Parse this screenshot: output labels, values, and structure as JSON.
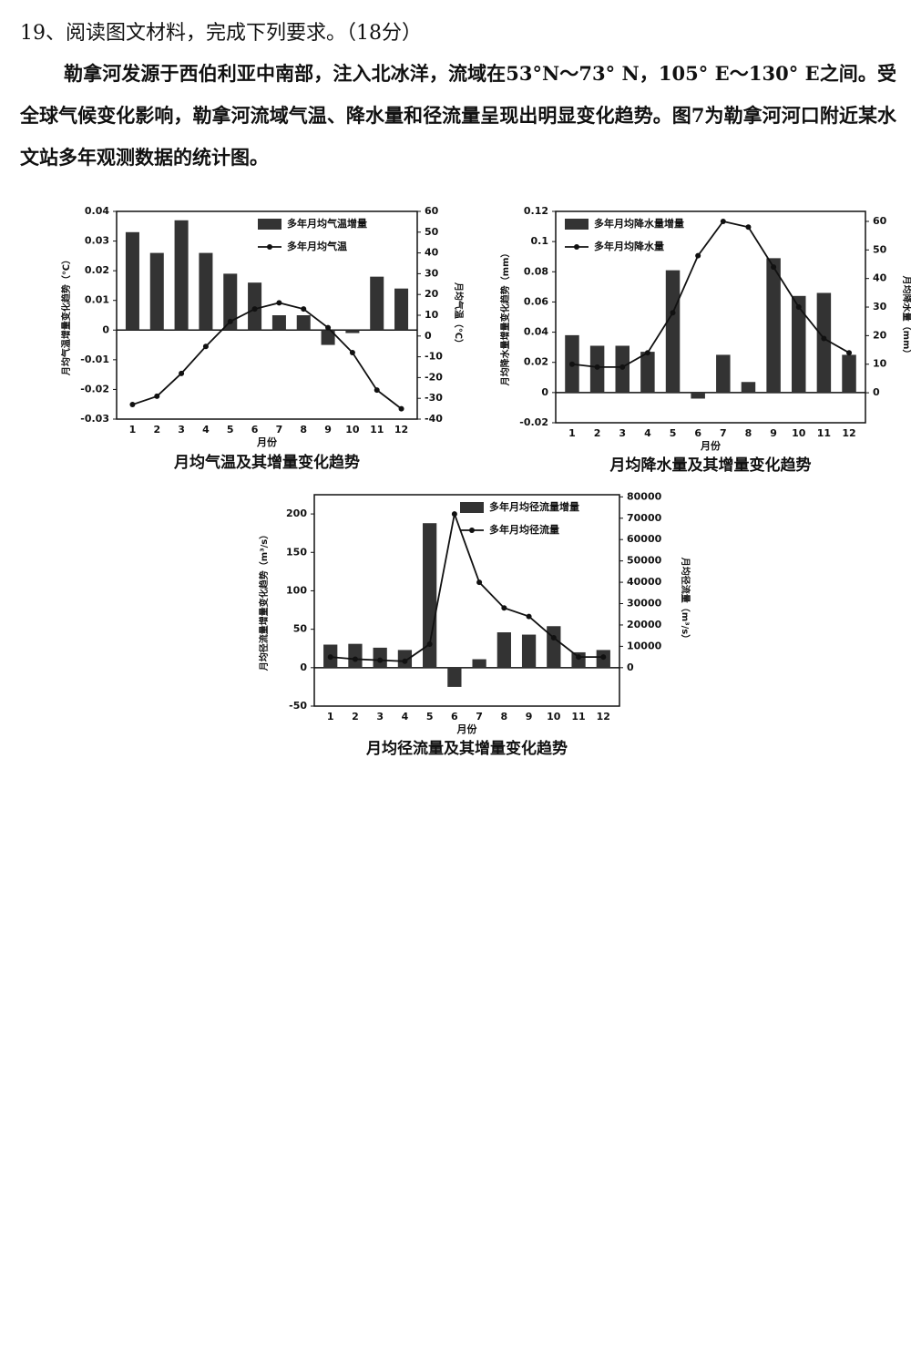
{
  "document": {
    "question": "19、阅读图文材料，完成下列要求。（18分）",
    "paragraph": "勒拿河发源于西伯利亚中南部，注入北冰洋，流域在53°N～73° N，105° E～130° E之间。受全球气候变化影响，勒拿河流域气温、降水量和径流量呈现出明显变化趋势。图7为勒拿河河口附近某水文站多年观测数据的统计图。"
  },
  "chart_data": [
    {
      "type": "combo",
      "title": "月均气温及其增量变化趋势",
      "x_label": "月份",
      "y_label": "月均气温增量变化趋势（℃）",
      "y2_label": "月均气温（℃）",
      "legend": "upper right",
      "categories": [
        "1",
        "2",
        "3",
        "4",
        "5",
        "6",
        "7",
        "8",
        "9",
        "10",
        "11",
        "12"
      ],
      "ylim": [
        -0.03,
        0.04
      ],
      "yticks": [
        -0.03,
        -0.02,
        -0.01,
        0,
        0.01,
        0.02,
        0.03,
        0.04
      ],
      "y2lim": [
        -40,
        60
      ],
      "y2ticks": [
        -40,
        -30,
        -20,
        -10,
        0,
        10,
        20,
        30,
        40,
        50,
        60
      ],
      "series": [
        {
          "name": "多年月均气温增量",
          "type": "bar",
          "color": "#333333",
          "values": [
            0.033,
            0.026,
            0.037,
            0.026,
            0.019,
            0.016,
            0.005,
            0.005,
            -0.005,
            -0.001,
            0.018,
            0.014
          ]
        },
        {
          "name": "多年月均气温",
          "type": "line",
          "axis": "y2",
          "color": "#111111",
          "values": [
            -33,
            -29,
            -18,
            -5,
            7,
            13,
            16,
            13,
            4,
            -8,
            -26,
            -35
          ]
        }
      ]
    },
    {
      "type": "combo",
      "title": "月均降水量及其增量变化趋势",
      "x_label": "月份",
      "y_label": "月均降水量增量变化趋势（mm）",
      "y2_label": "月均降水量（mm）",
      "legend": "upper left",
      "categories": [
        "1",
        "2",
        "3",
        "4",
        "5",
        "6",
        "7",
        "8",
        "9",
        "10",
        "11",
        "12"
      ],
      "ylim": [
        -0.02,
        0.12
      ],
      "yticks": [
        -0.02,
        0,
        0.02,
        0.04,
        0.06,
        0.08,
        0.1,
        0.12
      ],
      "y2lim": [
        -10.5,
        63.5
      ],
      "y2ticks": [
        0,
        10,
        20,
        30,
        40,
        50,
        60
      ],
      "series": [
        {
          "name": "多年月均降水量增量",
          "type": "bar",
          "color": "#333333",
          "values": [
            0.038,
            0.031,
            0.031,
            0.027,
            0.081,
            -0.004,
            0.025,
            0.007,
            0.089,
            0.064,
            0.066,
            0.025
          ]
        },
        {
          "name": "多年月均降水量",
          "type": "line",
          "axis": "y2",
          "color": "#111111",
          "values": [
            10,
            9,
            9,
            14,
            28,
            48,
            60,
            58,
            44,
            30,
            19,
            14
          ]
        }
      ]
    },
    {
      "type": "combo",
      "title": "月均径流量及其增量变化趋势",
      "x_label": "月份",
      "y_label": "月均径流量增量变化趋势（m³/s）",
      "y2_label": "月均径流量（m³/s）",
      "legend": "upper right",
      "categories": [
        "1",
        "2",
        "3",
        "4",
        "5",
        "6",
        "7",
        "8",
        "9",
        "10",
        "11",
        "12"
      ],
      "ylim": [
        -50,
        225
      ],
      "yticks": [
        -50,
        0,
        50,
        100,
        150,
        200
      ],
      "y2lim": [
        -18000,
        81000
      ],
      "y2ticks": [
        0,
        10000,
        20000,
        30000,
        40000,
        50000,
        60000,
        70000,
        80000
      ],
      "series": [
        {
          "name": "多年月均径流量增量",
          "type": "bar",
          "color": "#333333",
          "values": [
            30,
            31,
            26,
            23,
            188,
            -25,
            11,
            46,
            43,
            54,
            20,
            23
          ]
        },
        {
          "name": "多年月均径流量",
          "type": "line",
          "axis": "y2",
          "color": "#111111",
          "values": [
            5000,
            4000,
            3500,
            3000,
            11000,
            72000,
            40000,
            28000,
            24000,
            14000,
            5000,
            5000
          ]
        }
      ]
    }
  ]
}
